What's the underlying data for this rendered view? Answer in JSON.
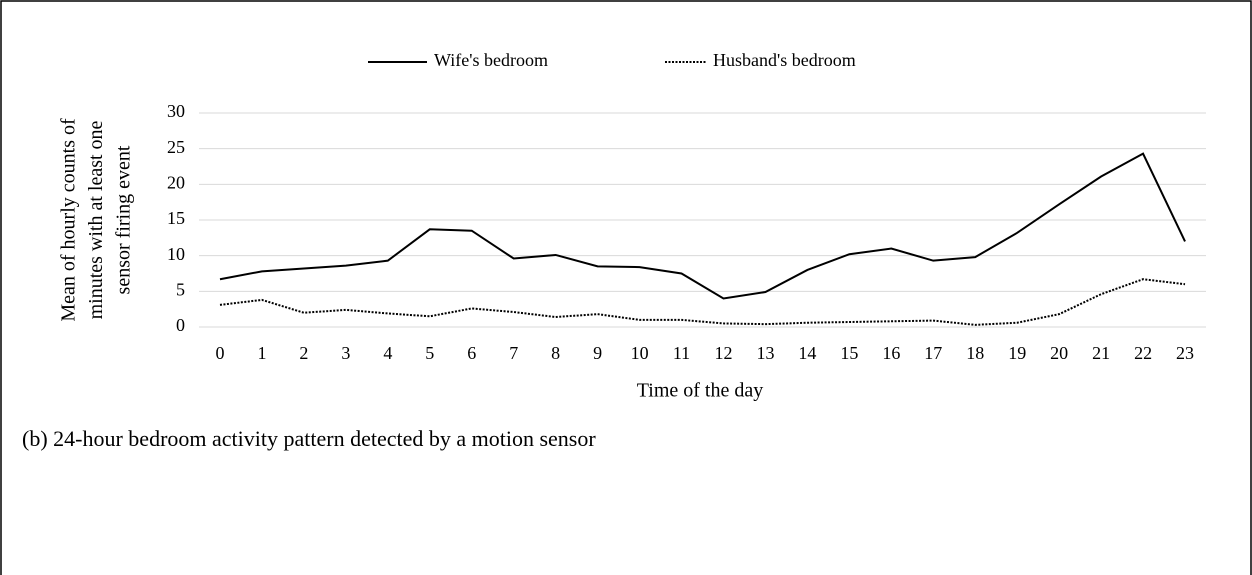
{
  "chart_data": {
    "type": "line",
    "ylabel": [
      "Mean of hourly counts of",
      "minutes with at least one",
      "sensor firing event"
    ],
    "xlabel": "Time of the day",
    "caption": "(b) 24-hour bedroom activity pattern detected by a motion sensor",
    "categories": [
      "0",
      "1",
      "2",
      "3",
      "4",
      "5",
      "6",
      "7",
      "8",
      "9",
      "10",
      "11",
      "12",
      "13",
      "14",
      "15",
      "16",
      "17",
      "18",
      "19",
      "20",
      "21",
      "22",
      "23"
    ],
    "series": [
      {
        "name": "Wife's bedroom",
        "color": "#000000",
        "dash": "solid",
        "values": [
          6.7,
          7.8,
          8.2,
          8.6,
          9.3,
          13.7,
          13.5,
          9.6,
          10.1,
          8.5,
          8.4,
          7.5,
          4.0,
          4.9,
          8.0,
          10.2,
          11.0,
          9.3,
          9.8,
          13.2,
          17.2,
          21.1,
          24.3,
          12.0
        ]
      },
      {
        "name": "Husband's bedroom",
        "color": "#000000",
        "dash": "dotted",
        "values": [
          3.1,
          3.8,
          2.0,
          2.4,
          1.9,
          1.5,
          2.6,
          2.1,
          1.4,
          1.8,
          1.0,
          1.0,
          0.5,
          0.4,
          0.6,
          0.7,
          0.8,
          0.9,
          0.3,
          0.6,
          1.8,
          4.6,
          6.7,
          6.0
        ]
      }
    ],
    "ylim": [
      0,
      30
    ],
    "yticks": [
      0,
      5,
      10,
      15,
      20,
      25,
      30
    ],
    "grid": true,
    "legend": "top"
  }
}
